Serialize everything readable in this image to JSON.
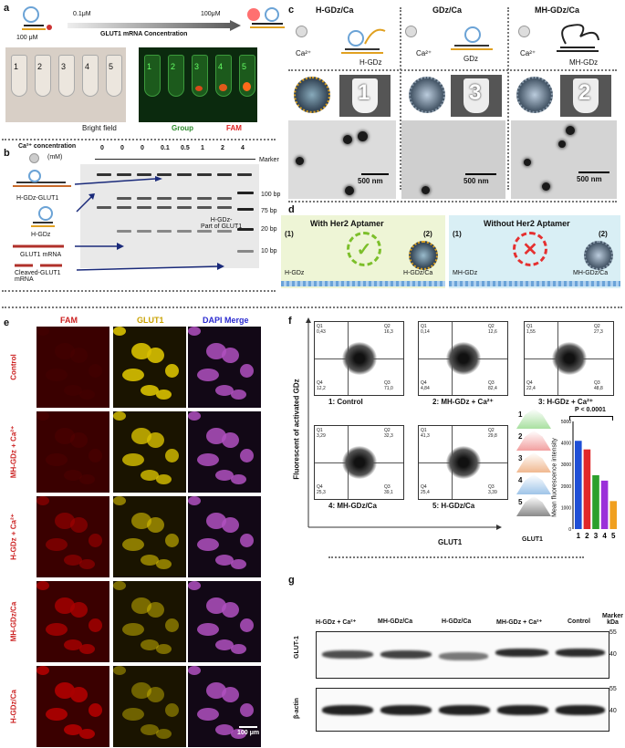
{
  "panel_a": {
    "label": "a",
    "conc_start": "0.1μM",
    "conc_end": "100μM",
    "axis_label": "GLUT1 mRNA Concentration",
    "probe_conc": "100 μM",
    "tubes": [
      "1",
      "2",
      "3",
      "4",
      "5"
    ],
    "bright_field": "Bright field",
    "group": "Group",
    "fam": "FAM"
  },
  "panel_b": {
    "label": "b",
    "ca_label": "Ca²⁺ concentration",
    "ca_unit": "(mM)",
    "lanes": [
      "0",
      "0",
      "0",
      "0.1",
      "0.5",
      "1",
      "2",
      "4"
    ],
    "marker": "Marker",
    "sizes": [
      "100 bp",
      "75 bp",
      "20 bp",
      "10 bp"
    ],
    "species": [
      "H-GDz-GLUT1",
      "H-GDz",
      "GLUT1 mRNA",
      "Cleaved-GLUT1 mRNA"
    ],
    "part_label": "H-GDz-\nPart of GLUT1"
  },
  "panel_c": {
    "label": "c",
    "titles": [
      "H-GDz/Ca",
      "GDz/Ca",
      "MH-GDz/Ca"
    ],
    "ca": [
      "Ca²⁺",
      "Ca²⁺",
      "Ca²⁺"
    ],
    "probe_names": [
      "H-GDz",
      "GDz",
      "MH-GDz"
    ],
    "tube_numbers": [
      "1",
      "3",
      "2"
    ],
    "scale": [
      "500 nm",
      "500 nm",
      "500 nm"
    ]
  },
  "panel_d": {
    "label": "d",
    "left_title": "With Her2 Aptamer",
    "right_title": "Without Her2 Aptamer",
    "n1": "(1)",
    "n2": "(2)",
    "left_items": [
      "H-GDz",
      "H-GDz/Ca"
    ],
    "right_items": [
      "MH-GDz",
      "MH-GDz/Ca"
    ],
    "colors": {
      "left_bg": "#eef5d6",
      "right_bg": "#d9eff5",
      "check": "#7cbf2a",
      "cross": "#e53030"
    }
  },
  "panel_e": {
    "label": "e",
    "col_headers": [
      "FAM",
      "GLUT1",
      "DAPI Merge"
    ],
    "row_labels": [
      "Control",
      "MH-GDz + Ca²⁺",
      "H-GDz + Ca²⁺",
      "MH-GDz/Ca",
      "H-GDz/Ca"
    ],
    "scale": "100 μm"
  },
  "panel_f": {
    "label": "f",
    "y_axis": "Fluorescent of activated GDz",
    "x_axis": "GLUT1",
    "plots": [
      {
        "title": "1: Control",
        "q1": "Q1\n0,43",
        "q2": "Q2\n16,3",
        "q3": "Q3\n71,0",
        "q4": "Q4\n12,2"
      },
      {
        "title": "2: MH-GDz + Ca²⁺",
        "q1": "Q1\n0,14",
        "q2": "Q2\n12,6",
        "q3": "Q3\n82,4",
        "q4": "Q4\n4,84"
      },
      {
        "title": "3: H-GDz + Ca²⁺",
        "q1": "Q1\n1,55",
        "q2": "Q2\n27,3",
        "q3": "Q3\n48,8",
        "q4": "Q4\n22,4"
      },
      {
        "title": "4: MH-GDz/Ca",
        "q1": "Q1\n3,29",
        "q2": "Q2\n32,3",
        "q3": "Q3\n39,1",
        "q4": "Q4\n25,3"
      },
      {
        "title": "5: H-GDz/Ca",
        "q1": "Q1\n41,3",
        "q2": "Q2\n29,8",
        "q3": "Q3\n3,39",
        "q4": "Q4\n25,4"
      }
    ],
    "hist_labels": [
      "1",
      "2",
      "3",
      "4",
      "5"
    ],
    "hist_x": "GLUT1",
    "pvalue": "P < 0.0001",
    "bar_ylabel": "Mean fluorescence intensity",
    "bar_ticks": [
      "5000",
      "4000",
      "3000",
      "2000",
      "1000",
      "0"
    ],
    "bar_colors": [
      "#1f4fd6",
      "#e0282a",
      "#2ca02c",
      "#9b30d9",
      "#f0a020"
    ]
  },
  "chart_data": {
    "type": "bar",
    "categories": [
      "1",
      "2",
      "3",
      "4",
      "5"
    ],
    "values": [
      4100,
      3700,
      2500,
      2250,
      1300
    ],
    "ylabel": "Mean fluorescence intensity",
    "ylim": [
      0,
      5000
    ]
  },
  "panel_g": {
    "label": "g",
    "lanes": [
      "H-GDz + Ca²⁺",
      "MH-GDz/Ca",
      "H-GDz/Ca",
      "MH-GDz + Ca²⁺",
      "Control"
    ],
    "marker": "Marker\nkDa",
    "rows": [
      "GLUT-1",
      "β-actin"
    ],
    "kda_top": [
      "55",
      "40"
    ],
    "kda_bottom": [
      "55",
      "40"
    ]
  }
}
